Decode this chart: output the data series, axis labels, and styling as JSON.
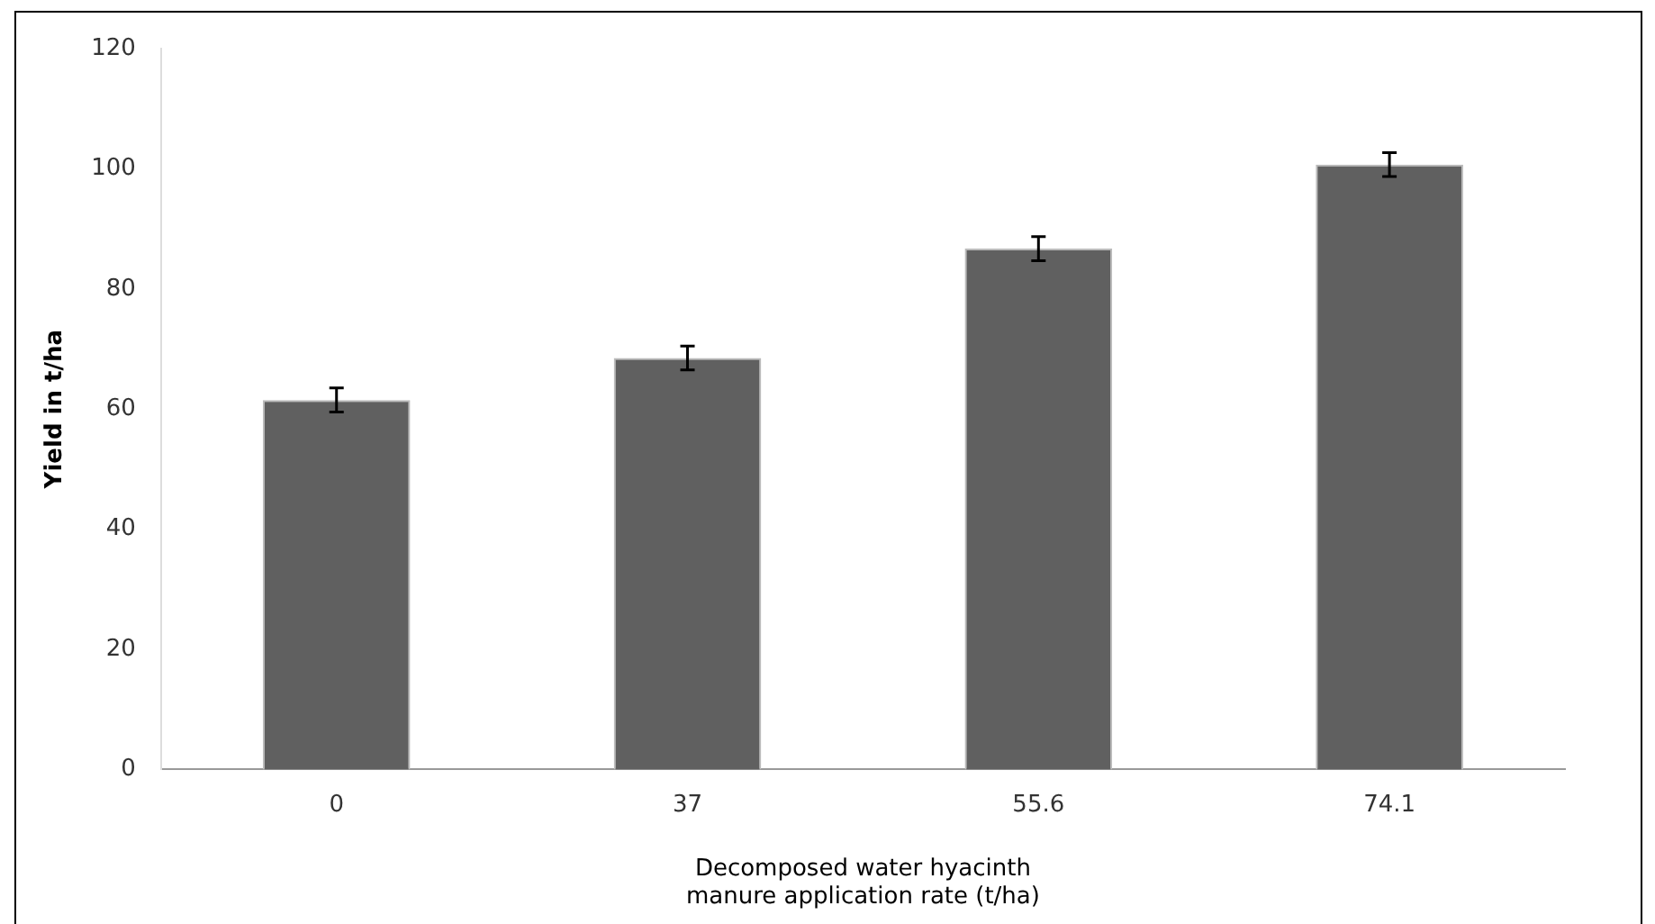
{
  "chart_data": {
    "type": "bar",
    "xlabel": "Decomposed water hyacinth\nmanure application rate (t/ha)",
    "ylabel": "Yield in t/ha",
    "categories": [
      "0",
      "37",
      "55.6",
      "74.1"
    ],
    "values": [
      61.5,
      68.5,
      86.7,
      100.7
    ],
    "errors": [
      2,
      2,
      2,
      2
    ],
    "color": "#606060",
    "ylim": [
      0,
      120
    ],
    "yticks": [
      0,
      20,
      40,
      60,
      80,
      100,
      120
    ],
    "grid": false,
    "legend": false
  }
}
